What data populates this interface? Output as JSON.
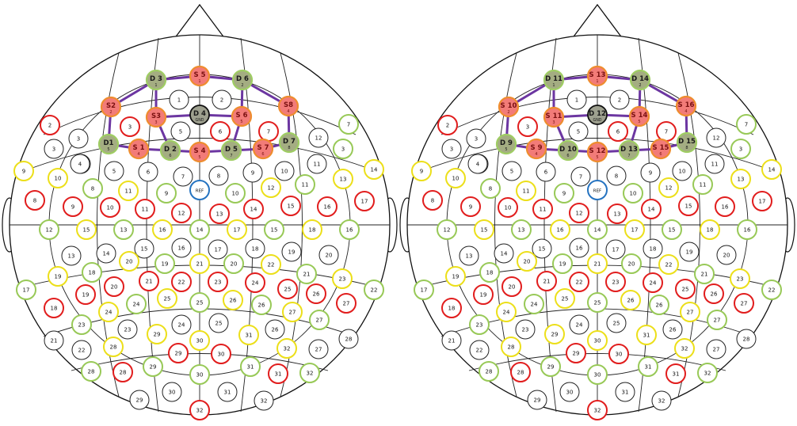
{
  "colors": {
    "outline": "#111111",
    "white_ring": "#222222",
    "red_ring": "#e11d1d",
    "yellow_ring": "#ecdf1a",
    "green_ring": "#98c957",
    "blue_ring": "#2573c0",
    "source_fill": "#f27b78",
    "source_ring": "#ee8d2e",
    "source_label": "#7a1010",
    "detector_fill": "#a4ad82",
    "detector_ring": "#9fcd63",
    "gnd_fill": "#9ea08f",
    "connector": "#6c36a1"
  },
  "reference_label": "REF",
  "heads": [
    {
      "name": "left",
      "sources": [
        {
          "label": "S 5",
          "sub": "1"
        },
        {
          "label": "S2",
          "sub": "2"
        },
        {
          "label": "S3",
          "sub": "3"
        },
        {
          "label": "S 6",
          "sub": "5"
        },
        {
          "label": "S8",
          "sub": "4"
        },
        {
          "label": "S 1",
          "sub": "4"
        },
        {
          "label": "S 4",
          "sub": "5"
        },
        {
          "label": "S 7",
          "sub": "6"
        }
      ],
      "detectors": [
        {
          "label": "D 3",
          "sub": "1"
        },
        {
          "label": "D 6",
          "sub": "2"
        },
        {
          "label": "D 4",
          "sub": "GND",
          "gnd": true
        },
        {
          "label": "D1",
          "sub": "5"
        },
        {
          "label": "D 2",
          "sub": "6"
        },
        {
          "label": "D 5",
          "sub": "7"
        },
        {
          "label": "D 7",
          "sub": "8"
        }
      ]
    },
    {
      "name": "right",
      "sources": [
        {
          "label": "S 13",
          "sub": "1"
        },
        {
          "label": "S 10",
          "sub": "2"
        },
        {
          "label": "S 11",
          "sub": "3"
        },
        {
          "label": "S 14",
          "sub": "5"
        },
        {
          "label": "S 16",
          "sub": "4"
        },
        {
          "label": "S 9",
          "sub": "4"
        },
        {
          "label": "S 12",
          "sub": "5"
        },
        {
          "label": "S 15",
          "sub": "6"
        }
      ],
      "detectors": [
        {
          "label": "D 11",
          "sub": "1"
        },
        {
          "label": "D 14",
          "sub": "2"
        },
        {
          "label": "D 12",
          "sub": "GND",
          "gnd": true
        },
        {
          "label": "D 9",
          "sub": "5"
        },
        {
          "label": "D 10",
          "sub": "6"
        },
        {
          "label": "D 13",
          "sub": "7"
        },
        {
          "label": "D 15",
          "sub": "8"
        }
      ]
    }
  ],
  "electrodes": [
    {
      "n": "1",
      "c": "w"
    },
    {
      "n": "2",
      "c": "w"
    },
    {
      "n": "2",
      "c": "r"
    },
    {
      "n": "3",
      "c": "w"
    },
    {
      "n": "3",
      "c": "r"
    },
    {
      "n": "4",
      "c": "w"
    },
    {
      "n": "5",
      "c": "w"
    },
    {
      "n": "6",
      "c": "r"
    },
    {
      "n": "7",
      "c": "r"
    },
    {
      "n": "7",
      "c": "g"
    },
    {
      "n": "12",
      "c": "w"
    },
    {
      "n": "3",
      "c": "g"
    },
    {
      "n": "3",
      "c": "w"
    },
    {
      "n": "4",
      "c": "w"
    },
    {
      "n": "5",
      "c": "w"
    },
    {
      "n": "6",
      "c": "w"
    },
    {
      "n": "7",
      "c": "w"
    },
    {
      "n": "8",
      "c": "w"
    },
    {
      "n": "9",
      "c": "w"
    },
    {
      "n": "10",
      "c": "w"
    },
    {
      "n": "11",
      "c": "w"
    },
    {
      "n": "9",
      "c": "y"
    },
    {
      "n": "10",
      "c": "y"
    },
    {
      "n": "8",
      "c": "g"
    },
    {
      "n": "11",
      "c": "y"
    },
    {
      "n": "9",
      "c": "g"
    },
    {
      "n": "10",
      "c": "g"
    },
    {
      "n": "12",
      "c": "y"
    },
    {
      "n": "11",
      "c": "g"
    },
    {
      "n": "13",
      "c": "y"
    },
    {
      "n": "14",
      "c": "y"
    },
    {
      "n": "8",
      "c": "r"
    },
    {
      "n": "9",
      "c": "r"
    },
    {
      "n": "10",
      "c": "r"
    },
    {
      "n": "11",
      "c": "r"
    },
    {
      "n": "12",
      "c": "r"
    },
    {
      "n": "13",
      "c": "r"
    },
    {
      "n": "14",
      "c": "r"
    },
    {
      "n": "15",
      "c": "r"
    },
    {
      "n": "16",
      "c": "r"
    },
    {
      "n": "17",
      "c": "r"
    },
    {
      "n": "12",
      "c": "g"
    },
    {
      "n": "15",
      "c": "y"
    },
    {
      "n": "13",
      "c": "g"
    },
    {
      "n": "16",
      "c": "y"
    },
    {
      "n": "14",
      "c": "g"
    },
    {
      "n": "17",
      "c": "y"
    },
    {
      "n": "15",
      "c": "g"
    },
    {
      "n": "18",
      "c": "y"
    },
    {
      "n": "16",
      "c": "g"
    },
    {
      "n": "13",
      "c": "w"
    },
    {
      "n": "14",
      "c": "w"
    },
    {
      "n": "15",
      "c": "w"
    },
    {
      "n": "16",
      "c": "w"
    },
    {
      "n": "17",
      "c": "w"
    },
    {
      "n": "18",
      "c": "w"
    },
    {
      "n": "19",
      "c": "w"
    },
    {
      "n": "20",
      "c": "w"
    },
    {
      "n": "17",
      "c": "g"
    },
    {
      "n": "19",
      "c": "y"
    },
    {
      "n": "18",
      "c": "g"
    },
    {
      "n": "20",
      "c": "y"
    },
    {
      "n": "19",
      "c": "g"
    },
    {
      "n": "21",
      "c": "y"
    },
    {
      "n": "20",
      "c": "g"
    },
    {
      "n": "22",
      "c": "y"
    },
    {
      "n": "21",
      "c": "g"
    },
    {
      "n": "23",
      "c": "y"
    },
    {
      "n": "22",
      "c": "g"
    },
    {
      "n": "18",
      "c": "r"
    },
    {
      "n": "19",
      "c": "r"
    },
    {
      "n": "20",
      "c": "r"
    },
    {
      "n": "21",
      "c": "r"
    },
    {
      "n": "22",
      "c": "r"
    },
    {
      "n": "23",
      "c": "r"
    },
    {
      "n": "24",
      "c": "r"
    },
    {
      "n": "25",
      "c": "r"
    },
    {
      "n": "26",
      "c": "r"
    },
    {
      "n": "27",
      "c": "r"
    },
    {
      "n": "23",
      "c": "g"
    },
    {
      "n": "24",
      "c": "y"
    },
    {
      "n": "24",
      "c": "g"
    },
    {
      "n": "25",
      "c": "y"
    },
    {
      "n": "25",
      "c": "g"
    },
    {
      "n": "26",
      "c": "y"
    },
    {
      "n": "26",
      "c": "g"
    },
    {
      "n": "27",
      "c": "y"
    },
    {
      "n": "27",
      "c": "g"
    },
    {
      "n": "21",
      "c": "w"
    },
    {
      "n": "22",
      "c": "w"
    },
    {
      "n": "23",
      "c": "w"
    },
    {
      "n": "24",
      "c": "w"
    },
    {
      "n": "25",
      "c": "w"
    },
    {
      "n": "26",
      "c": "w"
    },
    {
      "n": "27",
      "c": "w"
    },
    {
      "n": "28",
      "c": "w"
    },
    {
      "n": "28",
      "c": "y"
    },
    {
      "n": "29",
      "c": "y"
    },
    {
      "n": "30",
      "c": "y"
    },
    {
      "n": "31",
      "c": "y"
    },
    {
      "n": "32",
      "c": "y"
    },
    {
      "n": "28",
      "c": "g"
    },
    {
      "n": "29",
      "c": "g"
    },
    {
      "n": "30",
      "c": "g"
    },
    {
      "n": "31",
      "c": "g"
    },
    {
      "n": "32",
      "c": "g"
    },
    {
      "n": "28",
      "c": "r"
    },
    {
      "n": "29",
      "c": "r"
    },
    {
      "n": "30",
      "c": "r"
    },
    {
      "n": "31",
      "c": "r"
    },
    {
      "n": "29",
      "c": "w"
    },
    {
      "n": "30",
      "c": "w"
    },
    {
      "n": "31",
      "c": "w"
    },
    {
      "n": "32",
      "c": "w"
    },
    {
      "n": "32",
      "c": "r"
    }
  ]
}
